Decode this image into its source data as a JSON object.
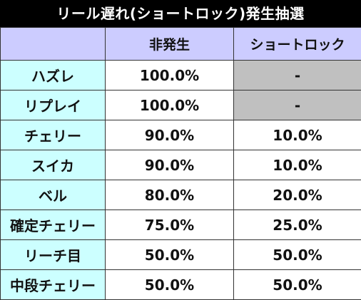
{
  "title": "リール遅れ(ショートロック)発生抽選",
  "table": {
    "columns": [
      "",
      "非発生",
      "ショートロック"
    ],
    "rows": [
      {
        "role": "ハズレ",
        "non_occurrence": "100.0%",
        "short_lock": "-"
      },
      {
        "role": "リプレイ",
        "non_occurrence": "100.0%",
        "short_lock": "-"
      },
      {
        "role": "チェリー",
        "non_occurrence": "90.0%",
        "short_lock": "10.0%"
      },
      {
        "role": "スイカ",
        "non_occurrence": "90.0%",
        "short_lock": "10.0%"
      },
      {
        "role": "ベル",
        "non_occurrence": "80.0%",
        "short_lock": "20.0%"
      },
      {
        "role": "確定チェリー",
        "non_occurrence": "75.0%",
        "short_lock": "25.0%"
      },
      {
        "role": "リーチ目",
        "non_occurrence": "50.0%",
        "short_lock": "50.0%"
      },
      {
        "role": "中段チェリー",
        "non_occurrence": "50.0%",
        "short_lock": "50.0%"
      }
    ]
  },
  "colors": {
    "title_bg": "#000000",
    "header_bg": "#ccccff",
    "role_bg": "#ccffff",
    "na_bg": "#c0c0c0"
  }
}
